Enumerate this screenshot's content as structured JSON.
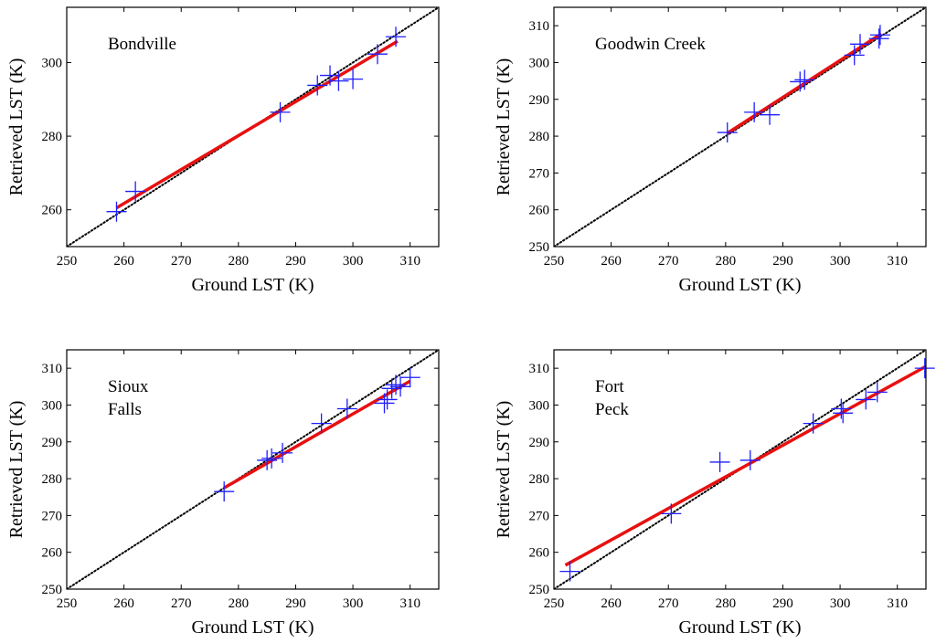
{
  "figure": {
    "background": "#ffffff"
  },
  "colors": {
    "points": "#1f1fff",
    "fit": "#e81010",
    "identity": "#000000",
    "axes": "#000000"
  },
  "chart_data": [
    {
      "type": "scatter",
      "title": "Bondville",
      "site_label_lines": [
        "Bondville"
      ],
      "xlabel": "Ground LST (K)",
      "ylabel": "Retrieved LST (K)",
      "xlim": [
        250,
        315
      ],
      "ylim": [
        250,
        315
      ],
      "xticks": [
        250,
        260,
        270,
        280,
        290,
        300,
        310
      ],
      "yticks": [
        260,
        280,
        300
      ],
      "grid": false,
      "legend": "none",
      "series": [
        {
          "name": "observations",
          "kind": "points",
          "x": [
            258.7,
            262.0,
            287.3,
            293.8,
            296.0,
            297.5,
            300.0,
            304.3,
            307.5
          ],
          "y": [
            259.5,
            265.0,
            286.5,
            293.8,
            296.5,
            295.0,
            295.5,
            302.3,
            307.0
          ]
        },
        {
          "name": "regression fit",
          "kind": "line",
          "x": [
            258.7,
            307.8
          ],
          "y": [
            260.5,
            305.8
          ]
        },
        {
          "name": "1:1 line",
          "kind": "line",
          "x": [
            250,
            315
          ],
          "y": [
            250,
            315
          ]
        }
      ]
    },
    {
      "type": "scatter",
      "title": "Goodwin Creek",
      "site_label_lines": [
        "Goodwin Creek"
      ],
      "xlabel": "Ground LST (K)",
      "ylabel": "Retrieved LST (K)",
      "xlim": [
        250,
        315
      ],
      "ylim": [
        250,
        315
      ],
      "xticks": [
        250,
        260,
        270,
        280,
        290,
        300,
        310
      ],
      "yticks": [
        250,
        260,
        270,
        280,
        290,
        300,
        310
      ],
      "grid": false,
      "legend": "none",
      "series": [
        {
          "name": "observations",
          "kind": "points",
          "x": [
            280.3,
            285.0,
            287.7,
            293.0,
            293.8,
            302.5,
            303.5,
            306.8,
            307.0
          ],
          "y": [
            281.0,
            286.5,
            285.8,
            294.8,
            295.3,
            302.0,
            305.0,
            306.5,
            307.5
          ]
        },
        {
          "name": "regression fit",
          "kind": "line",
          "x": [
            280.3,
            307.2
          ],
          "y": [
            280.8,
            307.8
          ]
        },
        {
          "name": "1:1 line",
          "kind": "line",
          "x": [
            250,
            315
          ],
          "y": [
            250,
            315
          ]
        }
      ]
    },
    {
      "type": "scatter",
      "title": "Sioux Falls",
      "site_label_lines": [
        "Sioux",
        "Falls"
      ],
      "xlabel": "Ground LST (K)",
      "ylabel": "Retrieved LST (K)",
      "xlim": [
        250,
        315
      ],
      "ylim": [
        250,
        315
      ],
      "xticks": [
        250,
        260,
        270,
        280,
        290,
        300,
        310
      ],
      "yticks": [
        250,
        260,
        270,
        280,
        290,
        300,
        310
      ],
      "grid": false,
      "legend": "none",
      "series": [
        {
          "name": "observations",
          "kind": "points",
          "x": [
            277.5,
            285.0,
            285.8,
            287.7,
            294.5,
            299.0,
            305.5,
            306.0,
            306.8,
            307.5,
            308.3,
            310.0
          ],
          "y": [
            276.5,
            285.0,
            285.5,
            287.0,
            295.0,
            299.0,
            300.5,
            301.5,
            304.5,
            305.5,
            305.0,
            307.5
          ]
        },
        {
          "name": "regression fit",
          "kind": "line",
          "x": [
            277.5,
            310.0
          ],
          "y": [
            277.5,
            306.5
          ]
        },
        {
          "name": "1:1 line",
          "kind": "line",
          "x": [
            250,
            315
          ],
          "y": [
            250,
            315
          ]
        }
      ]
    },
    {
      "type": "scatter",
      "title": "Fort Peck",
      "site_label_lines": [
        "Fort",
        "Peck"
      ],
      "xlabel": "Ground LST (K)",
      "ylabel": "Retrieved LST (K)",
      "xlim": [
        250,
        315
      ],
      "ylim": [
        250,
        315
      ],
      "xticks": [
        250,
        260,
        270,
        280,
        290,
        300,
        310
      ],
      "yticks": [
        250,
        260,
        270,
        280,
        290,
        300,
        310
      ],
      "grid": false,
      "legend": "none",
      "series": [
        {
          "name": "observations",
          "kind": "points",
          "x": [
            252.8,
            270.5,
            279.0,
            284.3,
            295.3,
            300.2,
            300.5,
            304.5,
            306.5,
            314.8
          ],
          "y": [
            254.8,
            270.5,
            284.5,
            285.0,
            295.0,
            299.0,
            297.8,
            301.5,
            303.5,
            310.0
          ]
        },
        {
          "name": "regression fit",
          "kind": "line",
          "x": [
            252.0,
            315.0
          ],
          "y": [
            256.5,
            310.5
          ]
        },
        {
          "name": "1:1 line",
          "kind": "line",
          "x": [
            250,
            315
          ],
          "y": [
            250,
            315
          ]
        }
      ]
    }
  ]
}
